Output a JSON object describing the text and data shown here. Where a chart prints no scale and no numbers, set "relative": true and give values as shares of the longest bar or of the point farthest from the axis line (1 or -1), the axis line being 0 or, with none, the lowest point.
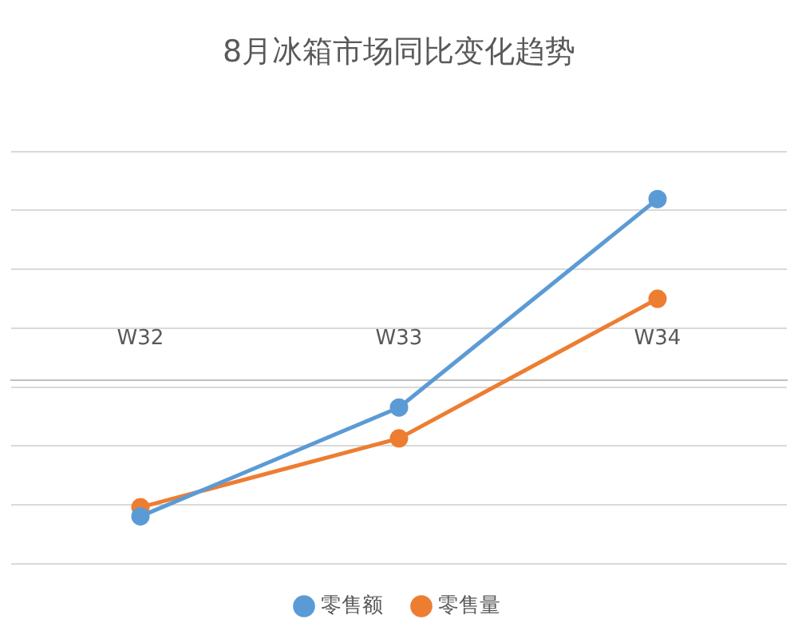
{
  "chart_data": {
    "type": "line",
    "title": "8月冰箱市场同比变化趋势",
    "categories": [
      "W32",
      "W33",
      "W34"
    ],
    "relative": true,
    "grid": "y",
    "legend": "bottom",
    "marker": "circle",
    "line_style": "solid",
    "series": [
      {
        "name": "零售额",
        "color": "#5b9bd5",
        "values": [
          -0.75,
          -0.15,
          1
        ]
      },
      {
        "name": "零售量",
        "color": "#ed7d31",
        "values": [
          -0.7,
          -0.32,
          0.45
        ]
      }
    ]
  }
}
